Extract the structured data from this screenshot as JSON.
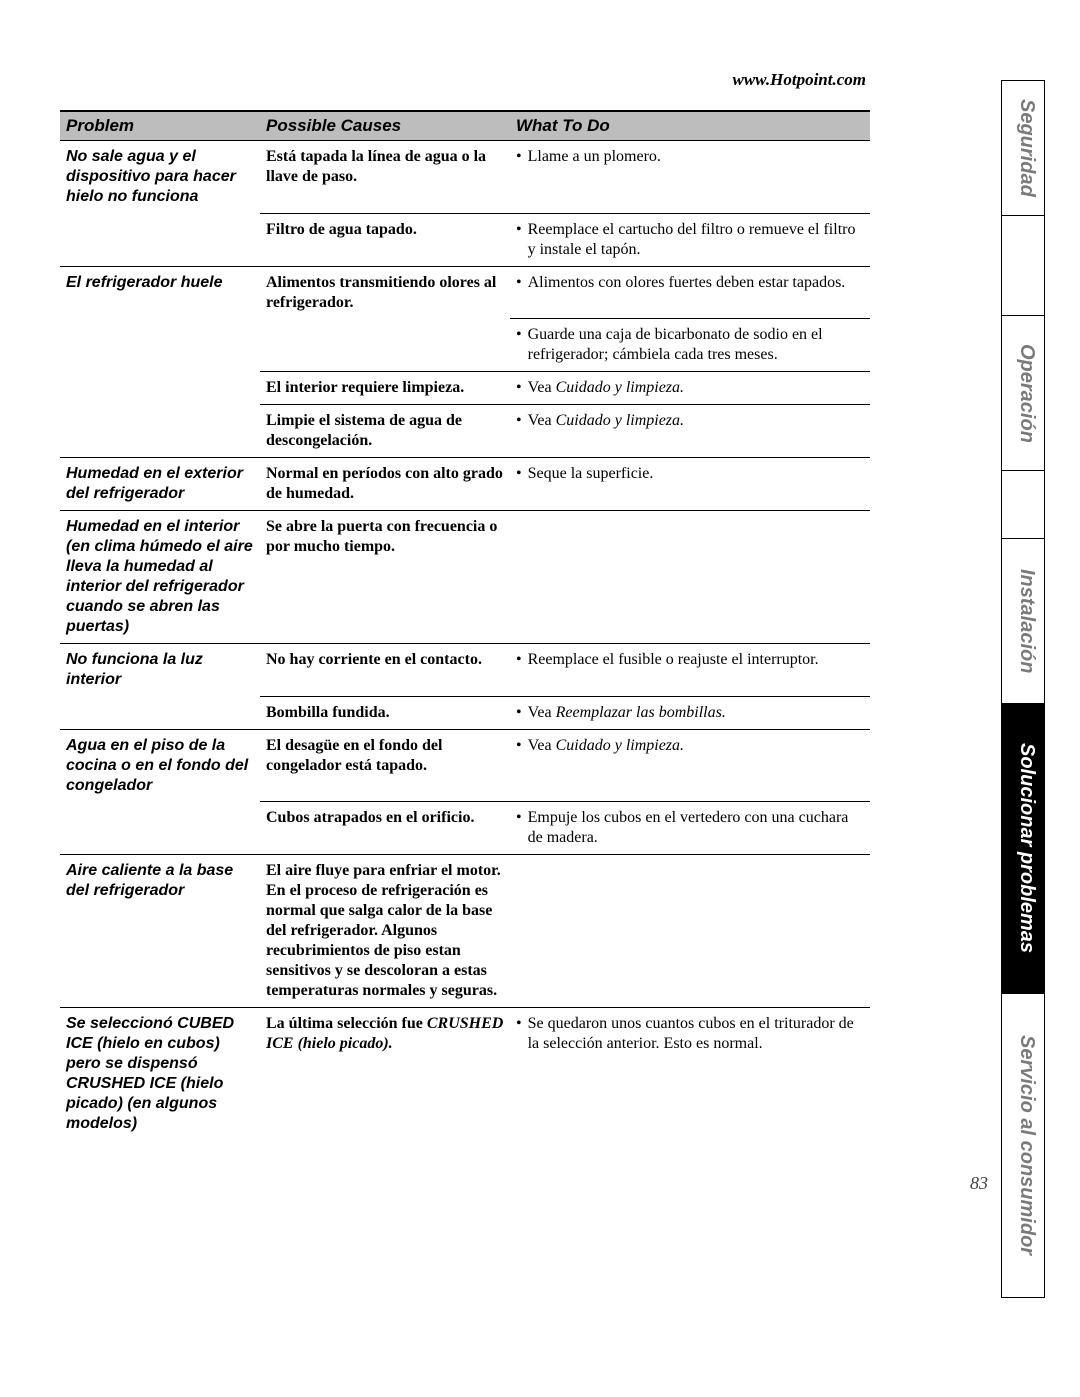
{
  "meta": {
    "url": "www.Hotpoint.com",
    "page_number": "83"
  },
  "columns": {
    "problem": "Problem",
    "cause": "Possible Causes",
    "todo": "What To Do"
  },
  "side_tabs": [
    {
      "label": "Seguridad",
      "active": false
    },
    {
      "label": "",
      "active": false,
      "blank": true
    },
    {
      "label": "Operación",
      "active": false
    },
    {
      "label": "",
      "active": false,
      "blank": true
    },
    {
      "label": "Instalación",
      "active": false
    },
    {
      "label": "Solucionar problemas",
      "active": true
    },
    {
      "label": "Servicio al consumidor",
      "active": false
    }
  ],
  "rows": [
    {
      "problem": "No sale agua y el dispositivo para hacer hielo no funciona",
      "cause": "Está tapada la línea de agua o la llave de paso.",
      "todo_plain": "Llame a un plomero.",
      "sep": "problem"
    },
    {
      "problem": "",
      "cause": "Filtro de agua tapado.",
      "todo_plain": "Reemplace el cartucho del filtro o remueve el filtro y instale el tapón.",
      "sep": "cause"
    },
    {
      "problem": "El refrigerador huele",
      "cause": "Alimentos transmitiendo olores al refrigerador.",
      "todo_plain": "Alimentos con olores fuertes deben estar tapados.",
      "sep": "problem"
    },
    {
      "problem": "",
      "cause": "",
      "todo_plain": "Guarde una caja de bicarbonato de sodio en el refrigerador; cámbiela cada tres meses.",
      "sep": "todo"
    },
    {
      "problem": "",
      "cause": "El interior requiere limpieza.",
      "todo_prefix": "Vea ",
      "todo_italic": "Cuidado y limpieza.",
      "sep": "cause"
    },
    {
      "problem": "",
      "cause": "Limpie el sistema de agua de descongelación.",
      "todo_prefix": "Vea ",
      "todo_italic": "Cuidado y limpieza.",
      "sep": "cause"
    },
    {
      "problem": "Humedad en el exterior del refrigerador",
      "cause": "Normal en períodos con alto grado de humedad.",
      "todo_plain": "Seque la superficie.",
      "sep": "problem"
    },
    {
      "problem": "Humedad en el interior (en clima húmedo el aire lleva la humedad al interior del refrigerador cuando se abren las puertas)",
      "cause": "Se abre la puerta con frecuencia o por mucho tiempo.",
      "todo_none": true,
      "sep": "problem"
    },
    {
      "problem": "No funciona la luz interior",
      "cause": "No hay corriente en el contacto.",
      "todo_plain": "Reemplace el fusible o reajuste el interruptor.",
      "sep": "problem"
    },
    {
      "problem": "",
      "cause": "Bombilla fundida.",
      "todo_prefix": "Vea ",
      "todo_italic": "Reemplazar las bombillas.",
      "sep": "cause"
    },
    {
      "problem": "Agua en el piso de la cocina o en el fondo del congelador",
      "cause": "El desagüe en el fondo del congelador está tapado.",
      "todo_prefix": "Vea ",
      "todo_italic": "Cuidado y limpieza.",
      "sep": "problem"
    },
    {
      "problem": "",
      "cause": "Cubos atrapados en el orificio.",
      "todo_plain": "Empuje los cubos en el vertedero con una cuchara de madera.",
      "sep": "cause"
    },
    {
      "problem": "Aire caliente a la base del refrigerador",
      "cause": "El aire fluye para enfriar el motor. En el proceso de refrigeración es normal que salga calor de la base del refrigerador. Algunos recubrimientos de piso estan sensitivos y se descoloran a estas temperaturas normales y seguras.",
      "todo_none": true,
      "sep": "problem"
    },
    {
      "problem": "Se seleccionó CUBED ICE (hielo en cubos) pero se dispensó CRUSHED ICE (hielo picado) (en algunos modelos)",
      "cause_prefix": "La última selección fue ",
      "cause_italic": "CRUSHED ICE (hielo picado).",
      "todo_plain": "Se quedaron unos cuantos cubos en el triturador de la selección anterior. Esto es normal.",
      "sep": "problem"
    }
  ],
  "tab_heights": [
    135,
    100,
    155,
    68,
    165,
    290,
    305
  ]
}
